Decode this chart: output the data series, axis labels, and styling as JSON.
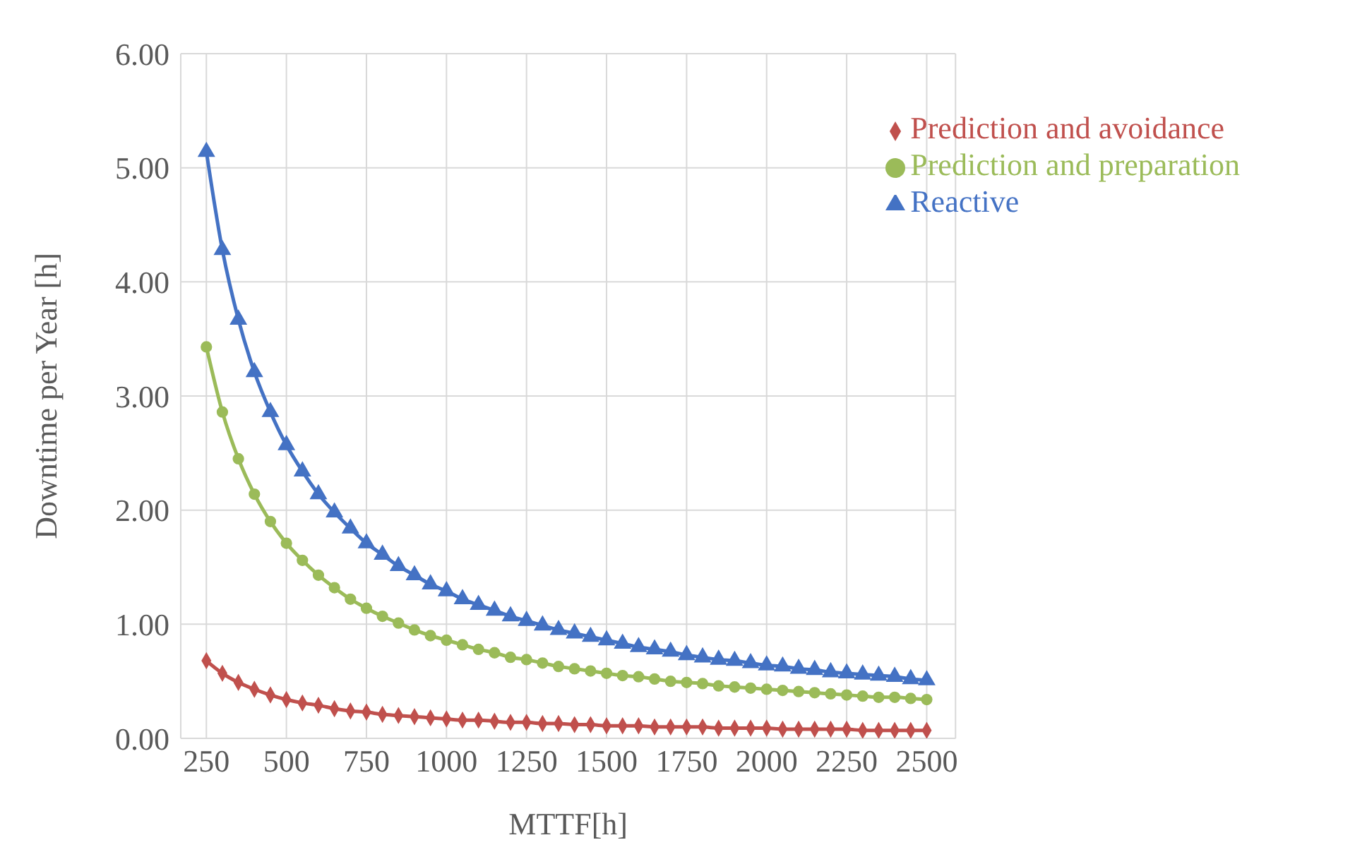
{
  "chart_data": {
    "type": "line",
    "xlabel": "MTTF[h]",
    "ylabel": "Downtime per Year [h]",
    "x": [
      250,
      300,
      350,
      400,
      450,
      500,
      550,
      600,
      650,
      700,
      750,
      800,
      850,
      900,
      950,
      1000,
      1050,
      1100,
      1150,
      1200,
      1250,
      1300,
      1350,
      1400,
      1450,
      1500,
      1550,
      1600,
      1650,
      1700,
      1750,
      1800,
      1850,
      1900,
      1950,
      2000,
      2050,
      2100,
      2150,
      2200,
      2250,
      2300,
      2350,
      2400,
      2450,
      2500
    ],
    "series": [
      {
        "name": "Reactive",
        "color": "#4472c4",
        "marker": "triangle",
        "values": [
          5.14,
          4.28,
          3.67,
          3.21,
          2.86,
          2.57,
          2.34,
          2.14,
          1.98,
          1.84,
          1.71,
          1.61,
          1.51,
          1.43,
          1.35,
          1.29,
          1.22,
          1.17,
          1.12,
          1.07,
          1.03,
          0.99,
          0.95,
          0.92,
          0.89,
          0.86,
          0.83,
          0.8,
          0.78,
          0.76,
          0.73,
          0.71,
          0.69,
          0.68,
          0.66,
          0.64,
          0.63,
          0.61,
          0.6,
          0.58,
          0.57,
          0.56,
          0.55,
          0.54,
          0.52,
          0.51
        ]
      },
      {
        "name": "Prediction and preparation",
        "color": "#9bbb59",
        "marker": "circle",
        "values": [
          3.43,
          2.86,
          2.45,
          2.14,
          1.9,
          1.71,
          1.56,
          1.43,
          1.32,
          1.22,
          1.14,
          1.07,
          1.01,
          0.95,
          0.9,
          0.86,
          0.82,
          0.78,
          0.75,
          0.71,
          0.69,
          0.66,
          0.63,
          0.61,
          0.59,
          0.57,
          0.55,
          0.54,
          0.52,
          0.5,
          0.49,
          0.48,
          0.46,
          0.45,
          0.44,
          0.43,
          0.42,
          0.41,
          0.4,
          0.39,
          0.38,
          0.37,
          0.36,
          0.36,
          0.35,
          0.34
        ]
      },
      {
        "name": "Prediction and avoidance",
        "color": "#c0504d",
        "marker": "diamond",
        "values": [
          0.68,
          0.57,
          0.49,
          0.43,
          0.38,
          0.34,
          0.31,
          0.29,
          0.26,
          0.24,
          0.23,
          0.21,
          0.2,
          0.19,
          0.18,
          0.17,
          0.16,
          0.16,
          0.15,
          0.14,
          0.14,
          0.13,
          0.13,
          0.12,
          0.12,
          0.11,
          0.11,
          0.11,
          0.1,
          0.1,
          0.1,
          0.1,
          0.09,
          0.09,
          0.09,
          0.09,
          0.08,
          0.08,
          0.08,
          0.08,
          0.08,
          0.07,
          0.07,
          0.07,
          0.07,
          0.07
        ]
      }
    ],
    "xlim": [
      170,
      2590
    ],
    "xticks": [
      250,
      500,
      750,
      1000,
      1250,
      1500,
      1750,
      2000,
      2250,
      2500
    ],
    "ylim": [
      0,
      6
    ],
    "yticks": [
      {
        "value": 0,
        "label": "0.00"
      },
      {
        "value": 1,
        "label": "1.00"
      },
      {
        "value": 2,
        "label": "2.00"
      },
      {
        "value": 3,
        "label": "3.00"
      },
      {
        "value": 4,
        "label": "4.00"
      },
      {
        "value": 5,
        "label": "5.00"
      },
      {
        "value": 6,
        "label": "6.00"
      }
    ],
    "grid": true,
    "legend": "top right",
    "line_style": "solid"
  }
}
